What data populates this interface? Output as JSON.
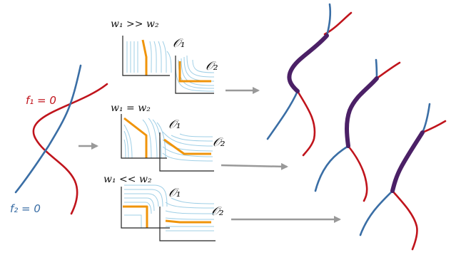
{
  "labels": {
    "f1": "f₁ = 0",
    "f2": "f₂ = 0"
  },
  "panels": [
    {
      "weight_label": "w₁ >> w₂",
      "o1": "𝒪₁",
      "o2": "𝒪₂"
    },
    {
      "weight_label": "w₁ = w₂",
      "o1": "𝒪₁",
      "o2": "𝒪₂"
    },
    {
      "weight_label": "w₁ << w₂",
      "o1": "𝒪₁",
      "o2": "𝒪₂"
    }
  ],
  "colors": {
    "red_curve": "#c0141c",
    "blue_curve": "#3a6ea5",
    "highlight": "#4b2066",
    "optimum_path": "#f0940a",
    "contour": "#9fcfe6",
    "arrow": "#999999"
  }
}
